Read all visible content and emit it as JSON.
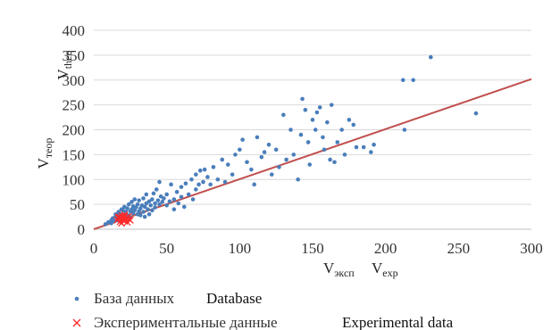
{
  "chart_data": {
    "type": "scatter",
    "title": "",
    "xlabel_ru": {
      "main": "V",
      "sub": "эксп"
    },
    "xlabel_en": {
      "main": "V",
      "sub": "exp"
    },
    "ylabel_ru": {
      "main": "V",
      "sub": "теор"
    },
    "ylabel_en": {
      "main": "V",
      "sub": "theo"
    },
    "xlim": [
      0,
      300
    ],
    "ylim": [
      0,
      400
    ],
    "xticks": [
      "0",
      "50",
      "100",
      "150",
      "200",
      "250",
      "300"
    ],
    "yticks": [
      "0",
      "50",
      "100",
      "150",
      "200",
      "250",
      "300",
      "350",
      "400"
    ],
    "grid": "horizontal",
    "legend_position": "bottom",
    "trendline": {
      "name": "",
      "color": "#c0504d",
      "points": [
        [
          0,
          0
        ],
        [
          300,
          302
        ]
      ]
    },
    "series": [
      {
        "name": "База данных",
        "name_en": "Database",
        "color": "#4a7ebb",
        "marker": "dot",
        "points": [
          [
            8,
            10
          ],
          [
            10,
            14
          ],
          [
            12,
            12
          ],
          [
            12,
            18
          ],
          [
            13,
            22
          ],
          [
            14,
            16
          ],
          [
            15,
            25
          ],
          [
            15,
            30
          ],
          [
            16,
            18
          ],
          [
            16,
            28
          ],
          [
            17,
            35
          ],
          [
            18,
            20
          ],
          [
            18,
            30
          ],
          [
            19,
            40
          ],
          [
            20,
            26
          ],
          [
            20,
            38
          ],
          [
            21,
            22
          ],
          [
            21,
            45
          ],
          [
            22,
            30
          ],
          [
            22,
            35
          ],
          [
            23,
            42
          ],
          [
            24,
            28
          ],
          [
            24,
            50
          ],
          [
            25,
            36
          ],
          [
            25,
            24
          ],
          [
            26,
            40
          ],
          [
            26,
            55
          ],
          [
            27,
            32
          ],
          [
            27,
            46
          ],
          [
            28,
            38
          ],
          [
            28,
            60
          ],
          [
            29,
            44
          ],
          [
            30,
            30
          ],
          [
            30,
            50
          ],
          [
            31,
            36
          ],
          [
            31,
            58
          ],
          [
            32,
            42
          ],
          [
            32,
            28
          ],
          [
            33,
            48
          ],
          [
            34,
            35
          ],
          [
            34,
            62
          ],
          [
            35,
            45
          ],
          [
            35,
            25
          ],
          [
            36,
            52
          ],
          [
            36,
            70
          ],
          [
            37,
            40
          ],
          [
            38,
            56
          ],
          [
            38,
            30
          ],
          [
            39,
            48
          ],
          [
            40,
            60
          ],
          [
            40,
            38
          ],
          [
            41,
            72
          ],
          [
            42,
            52
          ],
          [
            42,
            44
          ],
          [
            43,
            80
          ],
          [
            44,
            58
          ],
          [
            45,
            50
          ],
          [
            45,
            95
          ],
          [
            46,
            66
          ],
          [
            47,
            55
          ],
          [
            48,
            62
          ],
          [
            50,
            48
          ],
          [
            50,
            70
          ],
          [
            52,
            56
          ],
          [
            53,
            90
          ],
          [
            55,
            60
          ],
          [
            55,
            40
          ],
          [
            57,
            75
          ],
          [
            58,
            52
          ],
          [
            60,
            85
          ],
          [
            60,
            65
          ],
          [
            62,
            45
          ],
          [
            63,
            92
          ],
          [
            65,
            70
          ],
          [
            67,
            100
          ],
          [
            68,
            60
          ],
          [
            70,
            110
          ],
          [
            70,
            80
          ],
          [
            72,
            90
          ],
          [
            73,
            118
          ],
          [
            75,
            95
          ],
          [
            76,
            120
          ],
          [
            78,
            105
          ],
          [
            80,
            90
          ],
          [
            82,
            125
          ],
          [
            85,
            100
          ],
          [
            88,
            140
          ],
          [
            90,
            95
          ],
          [
            92,
            130
          ],
          [
            95,
            110
          ],
          [
            97,
            150
          ],
          [
            100,
            160
          ],
          [
            102,
            180
          ],
          [
            105,
            135
          ],
          [
            108,
            120
          ],
          [
            110,
            90
          ],
          [
            112,
            185
          ],
          [
            115,
            145
          ],
          [
            117,
            155
          ],
          [
            120,
            170
          ],
          [
            122,
            110
          ],
          [
            125,
            160
          ],
          [
            127,
            125
          ],
          [
            130,
            230
          ],
          [
            132,
            140
          ],
          [
            135,
            200
          ],
          [
            137,
            150
          ],
          [
            140,
            100
          ],
          [
            142,
            190
          ],
          [
            143,
            262
          ],
          [
            145,
            240
          ],
          [
            147,
            175
          ],
          [
            148,
            130
          ],
          [
            150,
            220
          ],
          [
            152,
            200
          ],
          [
            153,
            235
          ],
          [
            155,
            245
          ],
          [
            157,
            185
          ],
          [
            158,
            160
          ],
          [
            160,
            215
          ],
          [
            162,
            140
          ],
          [
            163,
            250
          ],
          [
            165,
            135
          ],
          [
            167,
            175
          ],
          [
            170,
            200
          ],
          [
            172,
            150
          ],
          [
            175,
            220
          ],
          [
            178,
            210
          ],
          [
            180,
            165
          ],
          [
            185,
            165
          ],
          [
            190,
            155
          ],
          [
            192,
            170
          ],
          [
            212,
            300
          ],
          [
            213,
            200
          ],
          [
            219,
            300
          ],
          [
            231,
            346
          ],
          [
            262,
            233
          ]
        ]
      },
      {
        "name": "Экспериментальные данные",
        "name_en": "Experimental data",
        "color": "#ff2a2a",
        "marker": "x",
        "points": [
          [
            16,
            18
          ],
          [
            17,
            22
          ],
          [
            18,
            15
          ],
          [
            18,
            24
          ],
          [
            19,
            20
          ],
          [
            19,
            27
          ],
          [
            20,
            18
          ],
          [
            20,
            23
          ],
          [
            21,
            16
          ],
          [
            21,
            26
          ],
          [
            22,
            21
          ],
          [
            22,
            19
          ],
          [
            23,
            24
          ],
          [
            23,
            14
          ],
          [
            24,
            20
          ],
          [
            24,
            26
          ],
          [
            25,
            18
          ],
          [
            19,
            12
          ],
          [
            21,
            29
          ],
          [
            17,
            25
          ]
        ]
      }
    ]
  }
}
